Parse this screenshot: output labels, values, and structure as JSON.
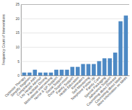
{
  "chart_data": {
    "type": "bar",
    "categories": [
      "Optimize Therapy",
      "Simplify Regimen",
      "Compliance Aids",
      "Lay Health Advisor",
      "Facilitate Dosing",
      "Motivational Interviewing",
      "Nurse & GP Support",
      "Social Support",
      "Dose Supervision",
      "Family Support",
      "Health Education",
      "Reminders",
      "Self-Monitoring",
      "Telephone Follow Up",
      "Family Care",
      "Special Packaging",
      "Adherence Support",
      "Counseling about Disease",
      "Counseling about Meds",
      "More Information on Meds"
    ],
    "values": [
      1,
      1,
      2,
      1,
      1,
      1,
      2,
      2,
      2,
      3,
      3,
      4,
      4,
      4,
      5,
      6,
      6,
      8,
      19,
      21
    ],
    "color": "#4d89c4",
    "ylabel": "Frequency Count of Interventions",
    "ylim": [
      0,
      25
    ],
    "yticks": [
      0,
      5,
      10,
      15,
      20,
      25
    ],
    "grid": true
  }
}
